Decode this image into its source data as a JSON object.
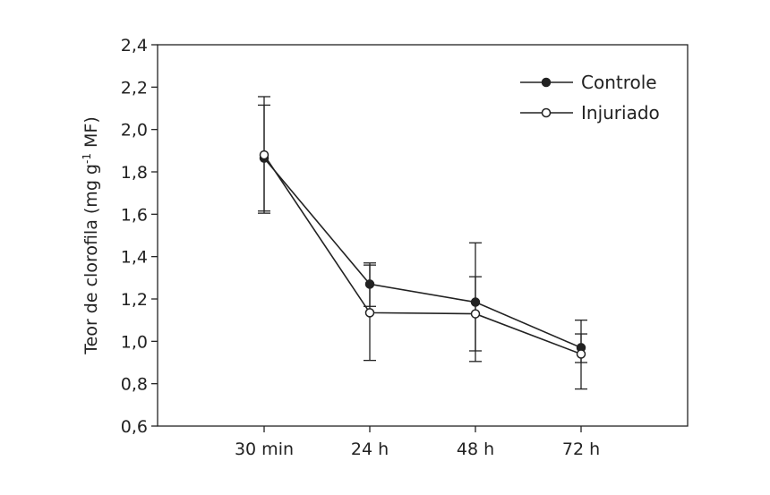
{
  "chart_data": {
    "type": "line",
    "title": "",
    "xlabel": "",
    "ylabel": "Teor de clorofila (mg g",
    "ylabel_superscript": "-1",
    "ylabel_suffix": " MF)",
    "categories": [
      "30 min",
      "24 h",
      "48 h",
      "72 h"
    ],
    "ylim": [
      0.6,
      2.4
    ],
    "yticks": [
      0.6,
      0.8,
      1.0,
      1.2,
      1.4,
      1.6,
      1.8,
      2.0,
      2.2,
      2.4
    ],
    "ytick_labels": [
      "0,6",
      "0,8",
      "1,0",
      "1,2",
      "1,4",
      "1,6",
      "1,8",
      "2,0",
      "2,2",
      "2,4"
    ],
    "grid": false,
    "legend_position": "top-right",
    "series": [
      {
        "name": "Controle",
        "marker": "filled-circle",
        "values": [
          1.865,
          1.27,
          1.185,
          0.97
        ],
        "error_low": [
          1.605,
          1.165,
          0.955,
          0.9
        ],
        "error_high": [
          2.115,
          1.37,
          1.305,
          1.035
        ]
      },
      {
        "name": "Injuriado",
        "marker": "open-circle",
        "values": [
          1.88,
          1.135,
          1.13,
          0.94
        ],
        "error_low": [
          1.615,
          0.91,
          0.905,
          0.775
        ],
        "error_high": [
          2.155,
          1.36,
          1.465,
          1.1
        ]
      }
    ],
    "colors": {
      "line": "#222222",
      "marker_fill_filled": "#222222",
      "marker_fill_open": "#ffffff"
    }
  }
}
